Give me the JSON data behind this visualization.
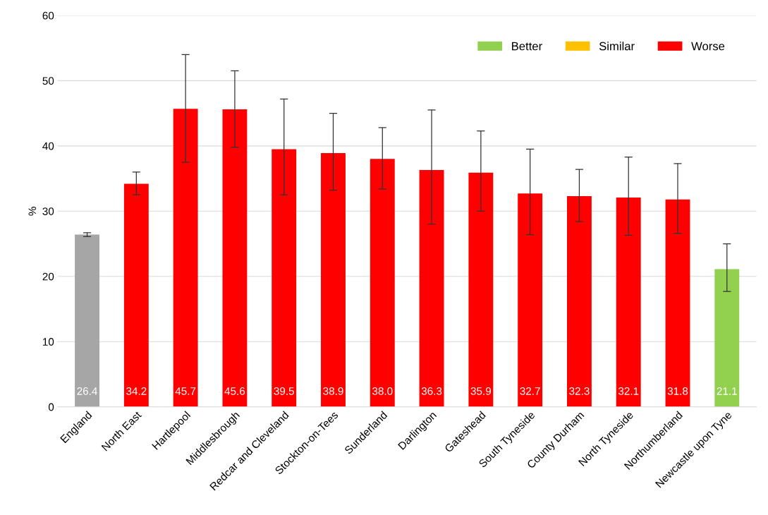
{
  "chart_data": {
    "type": "bar",
    "ylabel": "%",
    "categories": [
      "England",
      "North East",
      "Hartlepool",
      "Middlesbrough",
      "Redcar and Cleveland",
      "Stockton-on-Tees",
      "Sunderland",
      "Darlington",
      "Gateshead",
      "South Tyneside",
      "County Durham",
      "North Tyneside",
      "Northumberland",
      "Newcastle upon Tyne"
    ],
    "stacked": true,
    "series": [
      {
        "color": "#a6a6a6",
        "values": [
          26.4,
          null,
          null,
          null,
          null,
          null,
          null,
          null,
          null,
          null,
          null,
          null,
          null,
          null
        ],
        "value_labels": [
          "26.4",
          null,
          null,
          null,
          null,
          null,
          null,
          null,
          null,
          null,
          null,
          null,
          null,
          null
        ],
        "errors": [
          [
            26.1,
            26.7
          ],
          null,
          null,
          null,
          null,
          null,
          null,
          null,
          null,
          null,
          null,
          null,
          null,
          null
        ]
      },
      {
        "name": "Better",
        "color": "#92d050",
        "values": [
          null,
          null,
          null,
          null,
          null,
          null,
          null,
          null,
          null,
          null,
          null,
          null,
          null,
          21.1
        ],
        "value_labels": [
          null,
          null,
          null,
          null,
          null,
          null,
          null,
          null,
          null,
          null,
          null,
          null,
          null,
          "21.1"
        ],
        "errors": [
          null,
          null,
          null,
          null,
          null,
          null,
          null,
          null,
          null,
          null,
          null,
          null,
          null,
          [
            17.7,
            25.0
          ]
        ]
      },
      {
        "name": "Similar",
        "color": "#ffc000",
        "values": [
          null,
          null,
          null,
          null,
          null,
          null,
          null,
          null,
          null,
          null,
          null,
          null,
          null,
          null
        ]
      },
      {
        "name": "Worse",
        "color": "#ff0000",
        "values": [
          null,
          34.2,
          45.7,
          45.6,
          39.5,
          38.9,
          38.0,
          36.3,
          35.9,
          32.7,
          32.3,
          32.1,
          31.8,
          null
        ],
        "value_labels": [
          null,
          "34.2",
          "45.7",
          "45.6",
          "39.5",
          "38.9",
          "38.0",
          "36.3",
          "35.9",
          "32.7",
          "32.3",
          "32.1",
          "31.8",
          null
        ],
        "errors": [
          null,
          [
            32.5,
            36.0
          ],
          [
            37.5,
            54.0
          ],
          [
            39.8,
            51.5
          ],
          [
            32.5,
            47.2
          ],
          [
            33.2,
            45.0
          ],
          [
            33.4,
            42.8
          ],
          [
            28.0,
            45.5
          ],
          [
            30.0,
            42.3
          ],
          [
            26.4,
            39.5
          ],
          [
            28.4,
            36.4
          ],
          [
            26.3,
            38.3
          ],
          [
            26.6,
            37.3
          ],
          null
        ]
      }
    ],
    "ylim": [
      0,
      60
    ],
    "yticks": [
      0,
      10,
      20,
      30,
      40,
      50,
      60
    ],
    "grid": "y",
    "legend": "top right"
  }
}
